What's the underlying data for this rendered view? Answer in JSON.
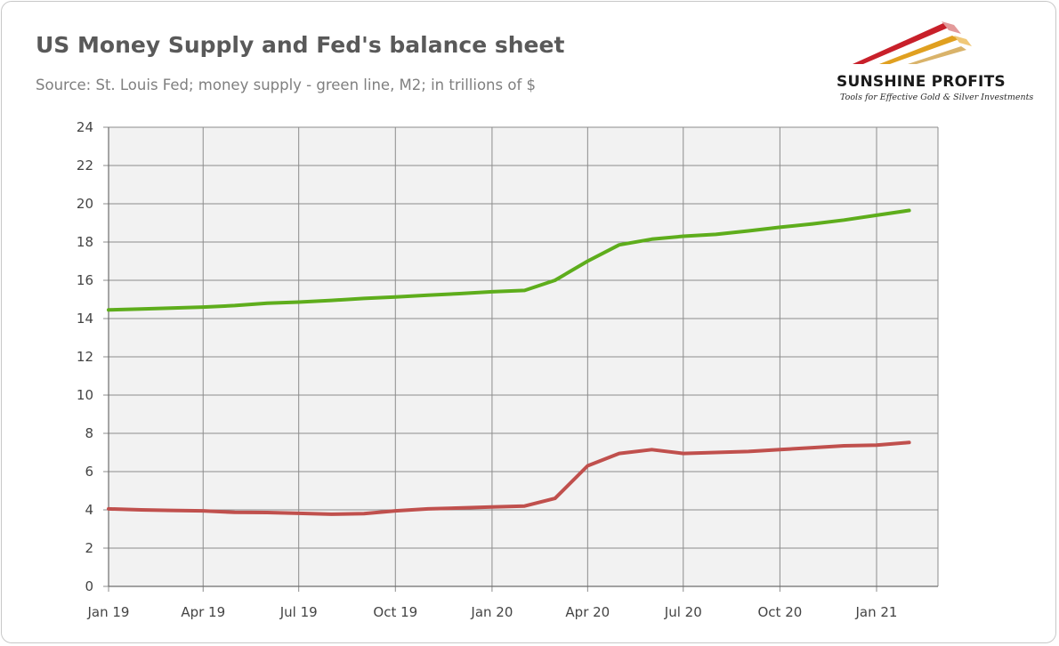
{
  "header": {
    "title": "US Money Supply and Fed's balance sheet",
    "subtitle": "Source: St. Louis Fed; money supply - green line, M2; in trillions of $"
  },
  "logo": {
    "name": "SUNSHINE PROFITS",
    "tagline": "Tools for Effective Gold & Silver Investments"
  },
  "chart_data": {
    "type": "line",
    "title": "US Money Supply and Fed's balance sheet",
    "xlabel": "",
    "ylabel": "",
    "ylim": [
      0,
      24
    ],
    "yticks": [
      0,
      2,
      4,
      6,
      8,
      10,
      12,
      14,
      16,
      18,
      20,
      22,
      24
    ],
    "xlim": [
      "2019-01-01",
      "2021-04-01"
    ],
    "xticks": [
      {
        "date": "2019-01-01",
        "label": "Jan 19"
      },
      {
        "date": "2019-04-01",
        "label": "Apr 19"
      },
      {
        "date": "2019-07-01",
        "label": "Jul 19"
      },
      {
        "date": "2019-10-01",
        "label": "Oct 19"
      },
      {
        "date": "2020-01-01",
        "label": "Jan 20"
      },
      {
        "date": "2020-04-01",
        "label": "Apr 20"
      },
      {
        "date": "2020-07-01",
        "label": "Jul 20"
      },
      {
        "date": "2020-10-01",
        "label": "Oct 20"
      },
      {
        "date": "2021-01-01",
        "label": "Jan 21"
      }
    ],
    "grid": true,
    "plot_background": "#f2f2f2",
    "series": [
      {
        "color": "#5ead1c",
        "points": [
          [
            "2019-01-01",
            14.45
          ],
          [
            "2019-02-01",
            14.5
          ],
          [
            "2019-03-01",
            14.55
          ],
          [
            "2019-04-01",
            14.6
          ],
          [
            "2019-05-01",
            14.68
          ],
          [
            "2019-06-01",
            14.8
          ],
          [
            "2019-07-01",
            14.86
          ],
          [
            "2019-08-01",
            14.95
          ],
          [
            "2019-09-01",
            15.05
          ],
          [
            "2019-10-01",
            15.13
          ],
          [
            "2019-11-01",
            15.22
          ],
          [
            "2019-12-01",
            15.3
          ],
          [
            "2020-01-01",
            15.4
          ],
          [
            "2020-02-01",
            15.47
          ],
          [
            "2020-03-01",
            16.0
          ],
          [
            "2020-04-01",
            17.0
          ],
          [
            "2020-05-01",
            17.85
          ],
          [
            "2020-06-01",
            18.15
          ],
          [
            "2020-07-01",
            18.3
          ],
          [
            "2020-08-01",
            18.4
          ],
          [
            "2020-09-01",
            18.58
          ],
          [
            "2020-10-01",
            18.77
          ],
          [
            "2020-11-01",
            18.95
          ],
          [
            "2020-12-01",
            19.15
          ],
          [
            "2021-01-01",
            19.4
          ],
          [
            "2021-02-01",
            19.65
          ]
        ]
      },
      {
        "color": "#c0504d",
        "points": [
          [
            "2019-01-01",
            4.05
          ],
          [
            "2019-02-01",
            4.0
          ],
          [
            "2019-03-01",
            3.97
          ],
          [
            "2019-04-01",
            3.95
          ],
          [
            "2019-05-01",
            3.87
          ],
          [
            "2019-06-01",
            3.86
          ],
          [
            "2019-07-01",
            3.82
          ],
          [
            "2019-08-01",
            3.77
          ],
          [
            "2019-09-01",
            3.8
          ],
          [
            "2019-10-01",
            3.95
          ],
          [
            "2019-11-01",
            4.05
          ],
          [
            "2019-12-01",
            4.1
          ],
          [
            "2020-01-01",
            4.15
          ],
          [
            "2020-02-01",
            4.2
          ],
          [
            "2020-03-01",
            4.6
          ],
          [
            "2020-04-01",
            6.3
          ],
          [
            "2020-05-01",
            6.95
          ],
          [
            "2020-06-01",
            7.15
          ],
          [
            "2020-07-01",
            6.95
          ],
          [
            "2020-08-01",
            7.0
          ],
          [
            "2020-09-01",
            7.05
          ],
          [
            "2020-10-01",
            7.15
          ],
          [
            "2020-11-01",
            7.25
          ],
          [
            "2020-12-01",
            7.35
          ],
          [
            "2021-01-01",
            7.38
          ],
          [
            "2021-02-01",
            7.52
          ]
        ]
      }
    ]
  }
}
